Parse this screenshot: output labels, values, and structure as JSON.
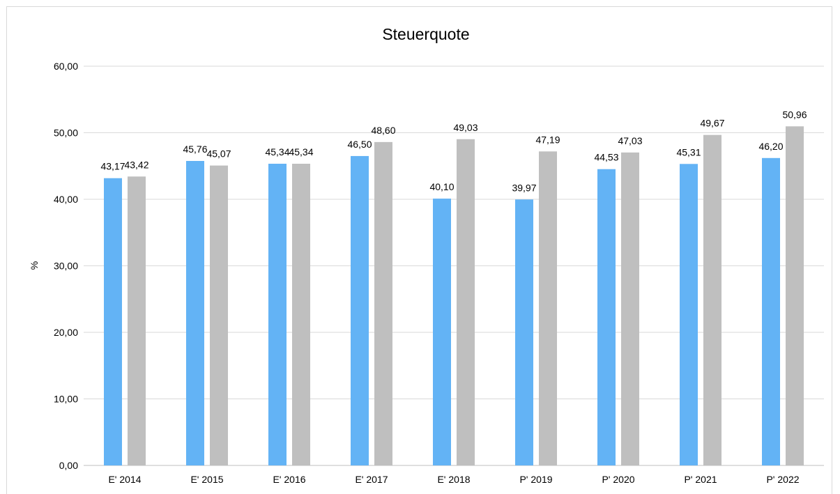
{
  "chart_data": {
    "type": "bar",
    "title": "Steuerquote",
    "xlabel": "",
    "ylabel": "%",
    "ylim": [
      0,
      60
    ],
    "yticks": [
      "0,00",
      "10,00",
      "20,00",
      "30,00",
      "40,00",
      "50,00",
      "60,00"
    ],
    "grid": true,
    "legend": "none",
    "categories": [
      "E' 2014",
      "E' 2015",
      "E' 2016",
      "E' 2017",
      "E' 2018",
      "P' 2019",
      "P' 2020",
      "P' 2021",
      "P' 2022"
    ],
    "series": [
      {
        "color": "#63b3f5",
        "values": [
          43.17,
          45.76,
          45.34,
          46.5,
          40.1,
          39.97,
          44.53,
          45.31,
          46.2
        ],
        "labels": [
          "43,17",
          "45,76",
          "45,34",
          "46,50",
          "40,10",
          "39,97",
          "44,53",
          "45,31",
          "46,20"
        ]
      },
      {
        "color": "#bfbfbf",
        "values": [
          43.42,
          45.07,
          45.34,
          48.6,
          49.03,
          47.19,
          47.03,
          49.67,
          50.96
        ],
        "labels": [
          "43,42",
          "45,07",
          "45,34",
          "48,60",
          "49,03",
          "47,19",
          "47,03",
          "49,67",
          "50,96"
        ]
      }
    ]
  }
}
